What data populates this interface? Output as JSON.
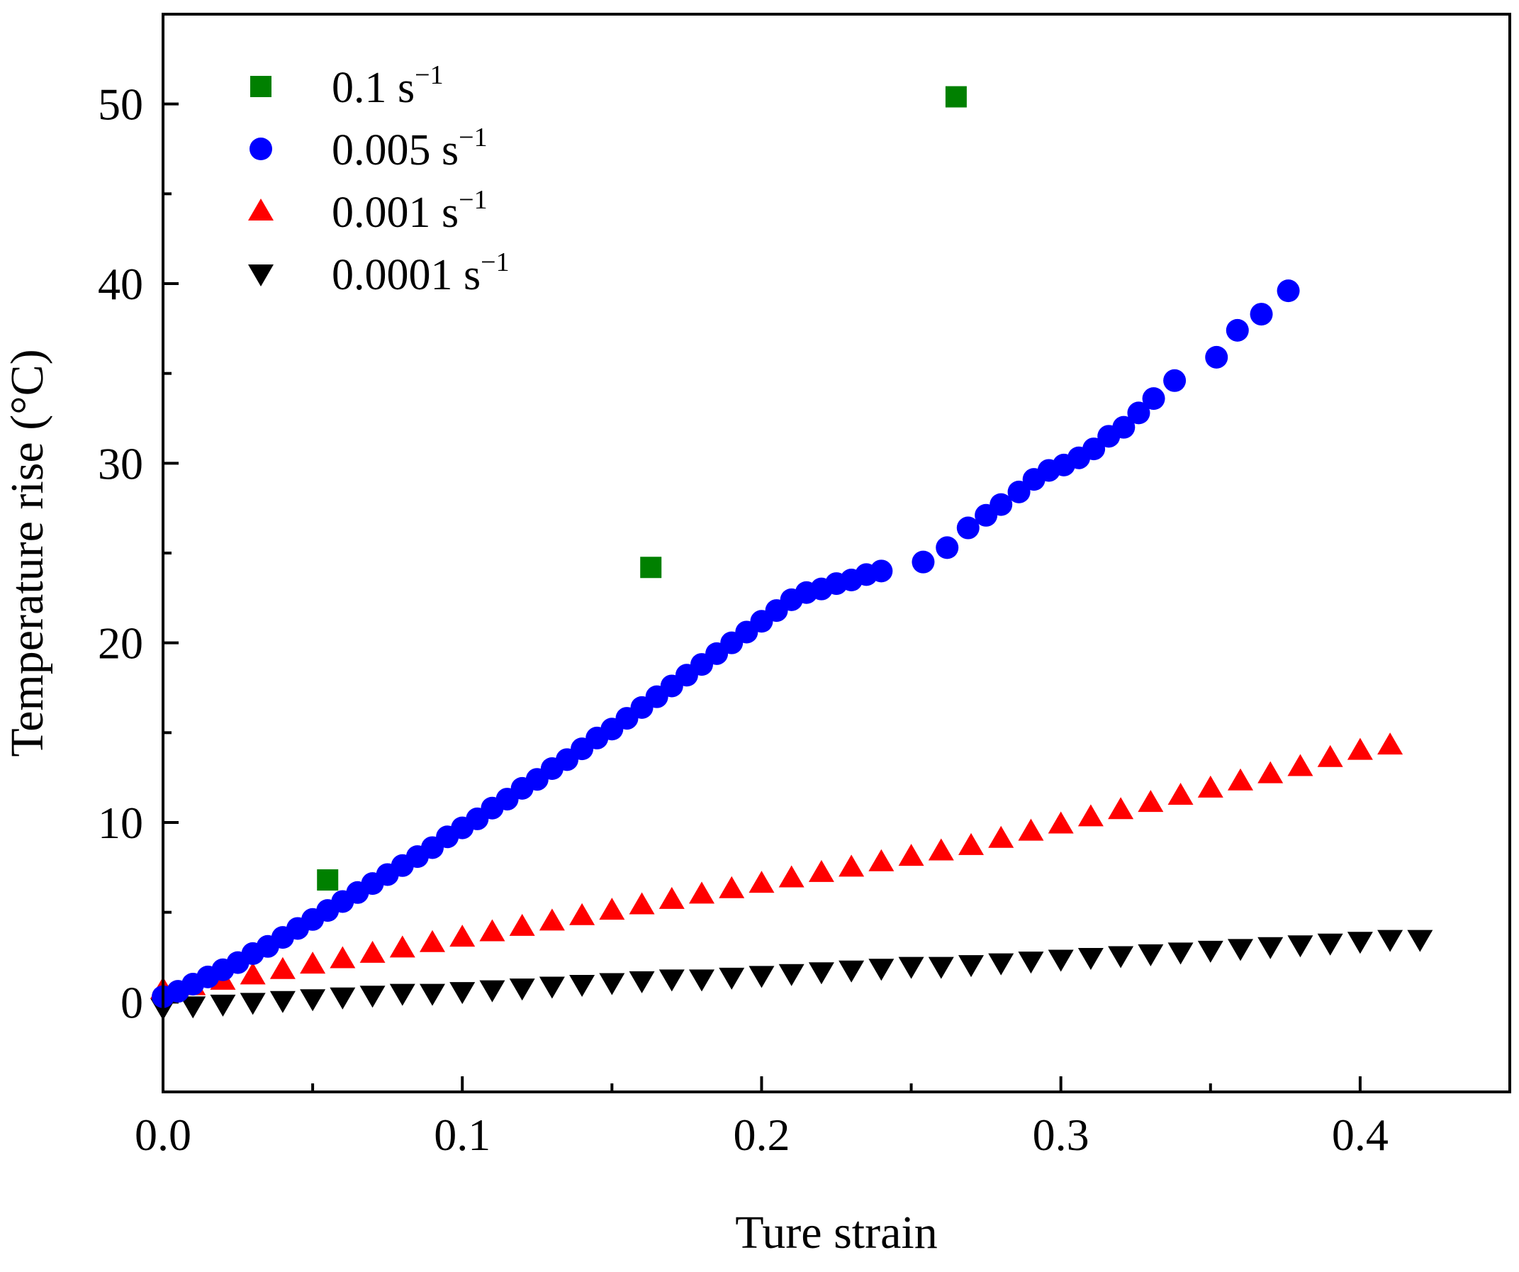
{
  "chart_data": {
    "type": "scatter",
    "title": "",
    "xlabel": "Ture strain",
    "ylabel": "Temperature rise (°C)",
    "xlim": [
      0.0,
      0.45
    ],
    "ylim": [
      -5,
      55
    ],
    "x_ticks": [
      0.0,
      0.1,
      0.2,
      0.3,
      0.4
    ],
    "x_tick_labels": [
      "0.0",
      "0.1",
      "0.2",
      "0.3",
      "0.4"
    ],
    "y_ticks": [
      0,
      10,
      20,
      30,
      40,
      50
    ],
    "y_tick_labels": [
      "0",
      "10",
      "20",
      "30",
      "40",
      "50"
    ],
    "x_minor_ticks": [
      0.05,
      0.15,
      0.25,
      0.35
    ],
    "y_minor_ticks": [
      -5,
      5,
      15,
      25,
      35,
      45
    ],
    "legend_position": "top-left",
    "grid": false,
    "series": [
      {
        "name": "0.1",
        "unit": "s",
        "exponent": "−1",
        "marker": "square",
        "color": "#008000",
        "x": [
          0.055,
          0.163,
          0.265
        ],
        "y": [
          6.8,
          24.2,
          50.4
        ]
      },
      {
        "name": "0.005",
        "unit": "s",
        "exponent": "−1",
        "marker": "circle",
        "color": "#0000ff",
        "x": [
          0.0,
          0.005,
          0.01,
          0.015,
          0.02,
          0.025,
          0.03,
          0.035,
          0.04,
          0.045,
          0.05,
          0.055,
          0.06,
          0.065,
          0.07,
          0.075,
          0.08,
          0.085,
          0.09,
          0.095,
          0.1,
          0.105,
          0.11,
          0.115,
          0.12,
          0.125,
          0.13,
          0.135,
          0.14,
          0.145,
          0.15,
          0.155,
          0.16,
          0.165,
          0.17,
          0.175,
          0.18,
          0.185,
          0.19,
          0.195,
          0.2,
          0.205,
          0.21,
          0.215,
          0.22,
          0.225,
          0.23,
          0.235,
          0.24,
          0.254,
          0.262,
          0.269,
          0.275,
          0.28,
          0.286,
          0.291,
          0.296,
          0.301,
          0.306,
          0.311,
          0.316,
          0.321,
          0.326,
          0.331,
          0.338,
          0.352,
          0.359,
          0.367,
          0.376
        ],
        "y": [
          0.3,
          0.6,
          1.0,
          1.4,
          1.8,
          2.2,
          2.7,
          3.1,
          3.6,
          4.1,
          4.6,
          5.1,
          5.6,
          6.1,
          6.6,
          7.1,
          7.6,
          8.1,
          8.6,
          9.2,
          9.7,
          10.2,
          10.8,
          11.3,
          11.9,
          12.4,
          13.0,
          13.5,
          14.1,
          14.7,
          15.2,
          15.8,
          16.4,
          17.0,
          17.6,
          18.2,
          18.8,
          19.4,
          20.0,
          20.6,
          21.2,
          21.8,
          22.4,
          22.8,
          23.0,
          23.3,
          23.5,
          23.8,
          24.0,
          24.5,
          25.3,
          26.4,
          27.1,
          27.7,
          28.4,
          29.1,
          29.6,
          29.9,
          30.3,
          30.8,
          31.5,
          32.0,
          32.8,
          33.6,
          34.6,
          35.9,
          37.4,
          38.3,
          39.6
        ]
      },
      {
        "name": "0.001",
        "unit": "s",
        "exponent": "−1",
        "marker": "triangle-up",
        "color": "#ff0000",
        "x": [
          0.0,
          0.01,
          0.02,
          0.03,
          0.04,
          0.05,
          0.06,
          0.07,
          0.08,
          0.09,
          0.1,
          0.11,
          0.12,
          0.13,
          0.14,
          0.15,
          0.16,
          0.17,
          0.18,
          0.19,
          0.2,
          0.21,
          0.22,
          0.23,
          0.24,
          0.25,
          0.26,
          0.27,
          0.28,
          0.29,
          0.3,
          0.31,
          0.32,
          0.33,
          0.34,
          0.35,
          0.36,
          0.37,
          0.38,
          0.39,
          0.4,
          0.41
        ],
        "y": [
          0.7,
          0.9,
          1.2,
          1.5,
          1.8,
          2.1,
          2.4,
          2.7,
          3.0,
          3.3,
          3.6,
          3.9,
          4.2,
          4.5,
          4.8,
          5.1,
          5.4,
          5.7,
          6.0,
          6.3,
          6.6,
          6.9,
          7.2,
          7.5,
          7.8,
          8.1,
          8.4,
          8.7,
          9.1,
          9.5,
          9.9,
          10.3,
          10.7,
          11.1,
          11.5,
          11.9,
          12.3,
          12.7,
          13.1,
          13.6,
          14.0,
          14.3
        ]
      },
      {
        "name": "0.0001",
        "unit": "s",
        "exponent": "−1",
        "marker": "triangle-down",
        "color": "#000000",
        "x": [
          0.0,
          0.01,
          0.02,
          0.03,
          0.04,
          0.05,
          0.06,
          0.07,
          0.08,
          0.09,
          0.1,
          0.11,
          0.12,
          0.13,
          0.14,
          0.15,
          0.16,
          0.17,
          0.18,
          0.19,
          0.2,
          0.21,
          0.22,
          0.23,
          0.24,
          0.25,
          0.26,
          0.27,
          0.28,
          0.29,
          0.3,
          0.31,
          0.32,
          0.33,
          0.34,
          0.35,
          0.36,
          0.37,
          0.38,
          0.39,
          0.4,
          0.41,
          0.42
        ],
        "y": [
          -0.3,
          -0.2,
          -0.1,
          0.0,
          0.1,
          0.2,
          0.3,
          0.4,
          0.5,
          0.5,
          0.6,
          0.7,
          0.8,
          0.9,
          1.0,
          1.1,
          1.2,
          1.3,
          1.3,
          1.4,
          1.5,
          1.6,
          1.7,
          1.8,
          1.9,
          2.0,
          2.0,
          2.1,
          2.2,
          2.3,
          2.4,
          2.5,
          2.6,
          2.7,
          2.8,
          2.9,
          3.0,
          3.1,
          3.2,
          3.3,
          3.4,
          3.5,
          3.5
        ]
      }
    ]
  }
}
